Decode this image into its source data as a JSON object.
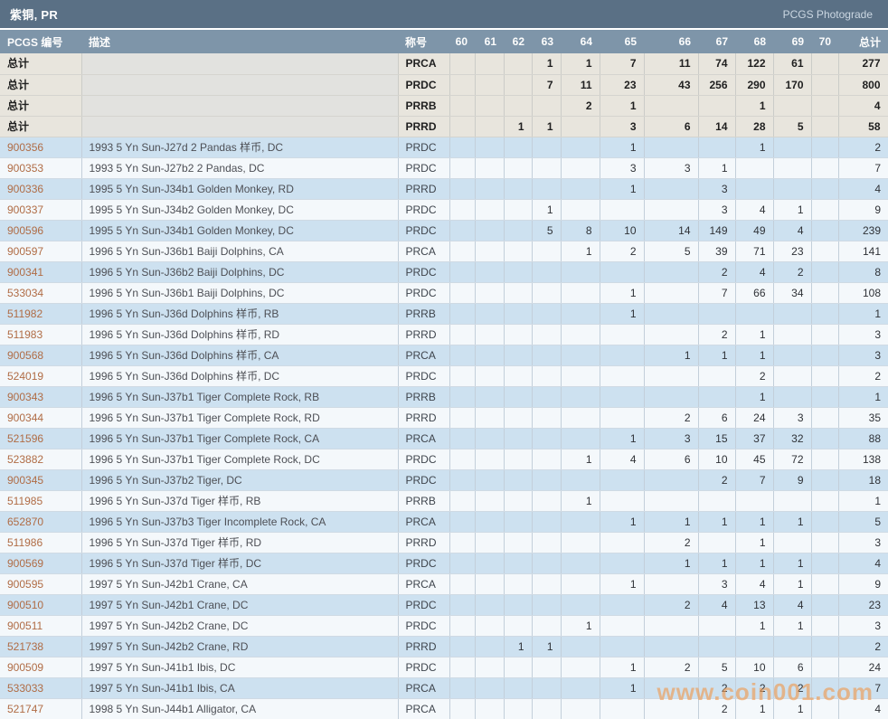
{
  "title_bar": {
    "title": "紫铜, PR",
    "right_link": "PCGS Photograde"
  },
  "watermark": "www.coin001.com",
  "colors": {
    "title_bar_bg": "#5a7085",
    "header_row_bg": "#7e95a9",
    "summary_row_bg": "#e8e5dd",
    "row_blue": "#cde1f0",
    "row_white": "#f4f8fb",
    "pcgs_link": "#b06c45",
    "watermark": "#f0994e"
  },
  "table": {
    "headers": {
      "pcgs": "PCGS 编号",
      "desc": "描述",
      "designation": "称号",
      "grades": [
        "60",
        "61",
        "62",
        "63",
        "64",
        "65",
        "66",
        "67",
        "68",
        "69",
        "70"
      ],
      "total": "总计"
    },
    "summary_rows": [
      {
        "label": "总计",
        "desc": "",
        "designation": "PRCA",
        "grades": [
          "",
          "",
          "",
          "1",
          "1",
          "7",
          "11",
          "74",
          "122",
          "61",
          ""
        ],
        "total": "277"
      },
      {
        "label": "总计",
        "desc": "",
        "designation": "PRDC",
        "grades": [
          "",
          "",
          "",
          "7",
          "11",
          "23",
          "43",
          "256",
          "290",
          "170",
          ""
        ],
        "total": "800"
      },
      {
        "label": "总计",
        "desc": "",
        "designation": "PRRB",
        "grades": [
          "",
          "",
          "",
          "",
          "2",
          "1",
          "",
          "",
          "1",
          "",
          ""
        ],
        "total": "4"
      },
      {
        "label": "总计",
        "desc": "",
        "designation": "PRRD",
        "grades": [
          "",
          "",
          "1",
          "1",
          "",
          "3",
          "6",
          "14",
          "28",
          "5",
          ""
        ],
        "total": "58"
      }
    ],
    "rows": [
      {
        "pcgs": "900356",
        "desc": "1993 5 Yn Sun-J27d 2 Pandas 样币, DC",
        "designation": "PRDC",
        "grades": [
          "",
          "",
          "",
          "",
          "",
          "1",
          "",
          "",
          "1",
          "",
          ""
        ],
        "total": "2"
      },
      {
        "pcgs": "900353",
        "desc": "1993 5 Yn Sun-J27b2 2 Pandas, DC",
        "designation": "PRDC",
        "grades": [
          "",
          "",
          "",
          "",
          "",
          "3",
          "3",
          "1",
          "",
          "",
          ""
        ],
        "total": "7"
      },
      {
        "pcgs": "900336",
        "desc": "1995 5 Yn Sun-J34b1 Golden Monkey, RD",
        "designation": "PRRD",
        "grades": [
          "",
          "",
          "",
          "",
          "",
          "1",
          "",
          "3",
          "",
          "",
          ""
        ],
        "total": "4"
      },
      {
        "pcgs": "900337",
        "desc": "1995 5 Yn Sun-J34b2 Golden Monkey, DC",
        "designation": "PRDC",
        "grades": [
          "",
          "",
          "",
          "1",
          "",
          "",
          "",
          "3",
          "4",
          "1",
          ""
        ],
        "total": "9"
      },
      {
        "pcgs": "900596",
        "desc": "1995 5 Yn Sun-J34b1 Golden Monkey, DC",
        "designation": "PRDC",
        "grades": [
          "",
          "",
          "",
          "5",
          "8",
          "10",
          "14",
          "149",
          "49",
          "4",
          ""
        ],
        "total": "239"
      },
      {
        "pcgs": "900597",
        "desc": "1996 5 Yn Sun-J36b1 Baiji Dolphins, CA",
        "designation": "PRCA",
        "grades": [
          "",
          "",
          "",
          "",
          "1",
          "2",
          "5",
          "39",
          "71",
          "23",
          ""
        ],
        "total": "141"
      },
      {
        "pcgs": "900341",
        "desc": "1996 5 Yn Sun-J36b2 Baiji Dolphins, DC",
        "designation": "PRDC",
        "grades": [
          "",
          "",
          "",
          "",
          "",
          "",
          "",
          "2",
          "4",
          "2",
          ""
        ],
        "total": "8"
      },
      {
        "pcgs": "533034",
        "desc": "1996 5 Yn Sun-J36b1 Baiji Dolphins, DC",
        "designation": "PRDC",
        "grades": [
          "",
          "",
          "",
          "",
          "",
          "1",
          "",
          "7",
          "66",
          "34",
          ""
        ],
        "total": "108"
      },
      {
        "pcgs": "511982",
        "desc": "1996 5 Yn Sun-J36d Dolphins 样币, RB",
        "designation": "PRRB",
        "grades": [
          "",
          "",
          "",
          "",
          "",
          "1",
          "",
          "",
          "",
          "",
          ""
        ],
        "total": "1"
      },
      {
        "pcgs": "511983",
        "desc": "1996 5 Yn Sun-J36d Dolphins 样币, RD",
        "designation": "PRRD",
        "grades": [
          "",
          "",
          "",
          "",
          "",
          "",
          "",
          "2",
          "1",
          "",
          ""
        ],
        "total": "3"
      },
      {
        "pcgs": "900568",
        "desc": "1996 5 Yn Sun-J36d Dolphins 样币, CA",
        "designation": "PRCA",
        "grades": [
          "",
          "",
          "",
          "",
          "",
          "",
          "1",
          "1",
          "1",
          "",
          ""
        ],
        "total": "3"
      },
      {
        "pcgs": "524019",
        "desc": "1996 5 Yn Sun-J36d Dolphins 样币, DC",
        "designation": "PRDC",
        "grades": [
          "",
          "",
          "",
          "",
          "",
          "",
          "",
          "",
          "2",
          "",
          ""
        ],
        "total": "2"
      },
      {
        "pcgs": "900343",
        "desc": "1996 5 Yn Sun-J37b1 Tiger Complete Rock, RB",
        "designation": "PRRB",
        "grades": [
          "",
          "",
          "",
          "",
          "",
          "",
          "",
          "",
          "1",
          "",
          ""
        ],
        "total": "1"
      },
      {
        "pcgs": "900344",
        "desc": "1996 5 Yn Sun-J37b1 Tiger Complete Rock, RD",
        "designation": "PRRD",
        "grades": [
          "",
          "",
          "",
          "",
          "",
          "",
          "2",
          "6",
          "24",
          "3",
          ""
        ],
        "total": "35"
      },
      {
        "pcgs": "521596",
        "desc": "1996 5 Yn Sun-J37b1 Tiger Complete Rock, CA",
        "designation": "PRCA",
        "grades": [
          "",
          "",
          "",
          "",
          "",
          "1",
          "3",
          "15",
          "37",
          "32",
          ""
        ],
        "total": "88"
      },
      {
        "pcgs": "523882",
        "desc": "1996 5 Yn Sun-J37b1 Tiger Complete Rock, DC",
        "designation": "PRDC",
        "grades": [
          "",
          "",
          "",
          "",
          "1",
          "4",
          "6",
          "10",
          "45",
          "72",
          ""
        ],
        "total": "138"
      },
      {
        "pcgs": "900345",
        "desc": "1996 5 Yn Sun-J37b2 Tiger, DC",
        "designation": "PRDC",
        "grades": [
          "",
          "",
          "",
          "",
          "",
          "",
          "",
          "2",
          "7",
          "9",
          ""
        ],
        "total": "18"
      },
      {
        "pcgs": "511985",
        "desc": "1996 5 Yn Sun-J37d Tiger 样币, RB",
        "designation": "PRRB",
        "grades": [
          "",
          "",
          "",
          "",
          "1",
          "",
          "",
          "",
          "",
          "",
          ""
        ],
        "total": "1"
      },
      {
        "pcgs": "652870",
        "desc": "1996 5 Yn Sun-J37b3 Tiger Incomplete Rock, CA",
        "designation": "PRCA",
        "grades": [
          "",
          "",
          "",
          "",
          "",
          "1",
          "1",
          "1",
          "1",
          "1",
          ""
        ],
        "total": "5"
      },
      {
        "pcgs": "511986",
        "desc": "1996 5 Yn Sun-J37d Tiger 样币, RD",
        "designation": "PRRD",
        "grades": [
          "",
          "",
          "",
          "",
          "",
          "",
          "2",
          "",
          "1",
          "",
          ""
        ],
        "total": "3"
      },
      {
        "pcgs": "900569",
        "desc": "1996 5 Yn Sun-J37d Tiger 样币, DC",
        "designation": "PRDC",
        "grades": [
          "",
          "",
          "",
          "",
          "",
          "",
          "1",
          "1",
          "1",
          "1",
          ""
        ],
        "total": "4"
      },
      {
        "pcgs": "900595",
        "desc": "1997 5 Yn Sun-J42b1 Crane, CA",
        "designation": "PRCA",
        "grades": [
          "",
          "",
          "",
          "",
          "",
          "1",
          "",
          "3",
          "4",
          "1",
          ""
        ],
        "total": "9"
      },
      {
        "pcgs": "900510",
        "desc": "1997 5 Yn Sun-J42b1 Crane, DC",
        "designation": "PRDC",
        "grades": [
          "",
          "",
          "",
          "",
          "",
          "",
          "2",
          "4",
          "13",
          "4",
          ""
        ],
        "total": "23"
      },
      {
        "pcgs": "900511",
        "desc": "1997 5 Yn Sun-J42b2 Crane, DC",
        "designation": "PRDC",
        "grades": [
          "",
          "",
          "",
          "",
          "1",
          "",
          "",
          "",
          "1",
          "1",
          ""
        ],
        "total": "3"
      },
      {
        "pcgs": "521738",
        "desc": "1997 5 Yn Sun-J42b2 Crane, RD",
        "designation": "PRRD",
        "grades": [
          "",
          "",
          "1",
          "1",
          "",
          "",
          "",
          "",
          "",
          "",
          ""
        ],
        "total": "2"
      },
      {
        "pcgs": "900509",
        "desc": "1997 5 Yn Sun-J41b1 Ibis, DC",
        "designation": "PRDC",
        "grades": [
          "",
          "",
          "",
          "",
          "",
          "1",
          "2",
          "5",
          "10",
          "6",
          ""
        ],
        "total": "24"
      },
      {
        "pcgs": "533033",
        "desc": "1997 5 Yn Sun-J41b1 Ibis, CA",
        "designation": "PRCA",
        "grades": [
          "",
          "",
          "",
          "",
          "",
          "1",
          "",
          "2",
          "2",
          "2",
          ""
        ],
        "total": "7"
      },
      {
        "pcgs": "521747",
        "desc": "1998 5 Yn Sun-J44b1 Alligator, CA",
        "designation": "PRCA",
        "grades": [
          "",
          "",
          "",
          "",
          "",
          "",
          "",
          "2",
          "1",
          "1",
          ""
        ],
        "total": "4"
      }
    ]
  }
}
